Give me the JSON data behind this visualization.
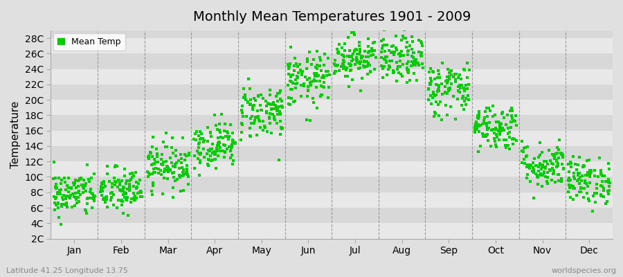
{
  "title": "Monthly Mean Temperatures 1901 - 2009",
  "ylabel": "Temperature",
  "xlabel_bottom_left": "Latitude 41.25 Longitude 13.75",
  "xlabel_bottom_right": "worldspecies.org",
  "legend_label": "Mean Temp",
  "dot_color": "#00cc00",
  "background_color": "#e0e0e0",
  "plot_bg_color": "#d8d8d8",
  "band_color_light": "#e8e8e8",
  "band_color_dark": "#d8d8d8",
  "ytick_labels": [
    "2C",
    "4C",
    "6C",
    "8C",
    "10C",
    "12C",
    "14C",
    "16C",
    "18C",
    "20C",
    "22C",
    "24C",
    "26C",
    "28C"
  ],
  "ytick_values": [
    2,
    4,
    6,
    8,
    10,
    12,
    14,
    16,
    18,
    20,
    22,
    24,
    26,
    28
  ],
  "ylim": [
    2,
    29
  ],
  "months": [
    "Jan",
    "Feb",
    "Mar",
    "Apr",
    "May",
    "Jun",
    "Jul",
    "Aug",
    "Sep",
    "Oct",
    "Nov",
    "Dec"
  ],
  "monthly_mean_temps": [
    7.8,
    8.2,
    11.5,
    14.2,
    18.5,
    22.5,
    25.5,
    25.2,
    21.5,
    16.5,
    11.5,
    9.5
  ],
  "monthly_std": [
    1.5,
    1.5,
    1.5,
    1.5,
    1.8,
    1.8,
    1.5,
    1.5,
    1.8,
    1.5,
    1.5,
    1.5
  ],
  "n_years": 109,
  "seed": 42,
  "marker_size": 2.5,
  "dpi": 100,
  "figsize": [
    9.0,
    4.0
  ]
}
